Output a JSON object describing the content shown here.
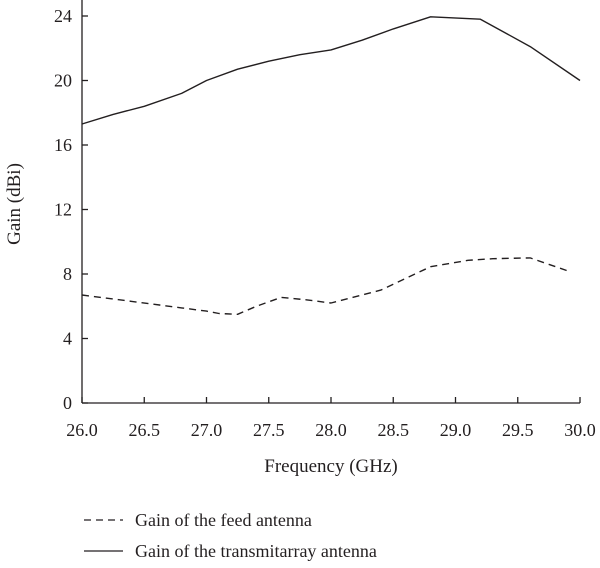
{
  "chart_data": {
    "type": "line",
    "xlabel": "Frequency (GHz)",
    "ylabel": "Gain (dBi)",
    "xlim": [
      26.0,
      30.0
    ],
    "ylim": [
      0,
      24
    ],
    "x_ticks": [
      "26.0",
      "26.5",
      "27.0",
      "27.5",
      "28.0",
      "28.5",
      "29.0",
      "29.5",
      "30.0"
    ],
    "y_ticks": [
      "0",
      "4",
      "8",
      "12",
      "16",
      "20",
      "24"
    ],
    "grid": false,
    "legend_position": "bottom",
    "series": [
      {
        "name": "Gain of the feed antenna",
        "line_style": "dashed",
        "color": "#231f20",
        "points": [
          [
            26.0,
            6.7
          ],
          [
            26.4,
            6.3
          ],
          [
            26.8,
            5.9
          ],
          [
            27.0,
            5.7
          ],
          [
            27.1,
            5.55
          ],
          [
            27.25,
            5.5
          ],
          [
            27.4,
            6.0
          ],
          [
            27.6,
            6.55
          ],
          [
            27.8,
            6.4
          ],
          [
            28.0,
            6.2
          ],
          [
            28.2,
            6.6
          ],
          [
            28.4,
            7.0
          ],
          [
            28.8,
            8.45
          ],
          [
            29.1,
            8.85
          ],
          [
            29.3,
            8.95
          ],
          [
            29.6,
            9.0
          ],
          [
            29.9,
            8.2
          ]
        ]
      },
      {
        "name": "Gain of the transmitarray antenna",
        "line_style": "solid",
        "color": "#231f20",
        "points": [
          [
            26.0,
            17.3
          ],
          [
            26.25,
            17.9
          ],
          [
            26.5,
            18.4
          ],
          [
            26.8,
            19.2
          ],
          [
            27.0,
            20.0
          ],
          [
            27.25,
            20.7
          ],
          [
            27.5,
            21.2
          ],
          [
            27.75,
            21.6
          ],
          [
            28.0,
            21.9
          ],
          [
            28.25,
            22.5
          ],
          [
            28.5,
            23.2
          ],
          [
            28.8,
            23.95
          ],
          [
            29.2,
            23.8
          ],
          [
            29.6,
            22.1
          ],
          [
            30.0,
            20.0
          ]
        ]
      }
    ]
  }
}
